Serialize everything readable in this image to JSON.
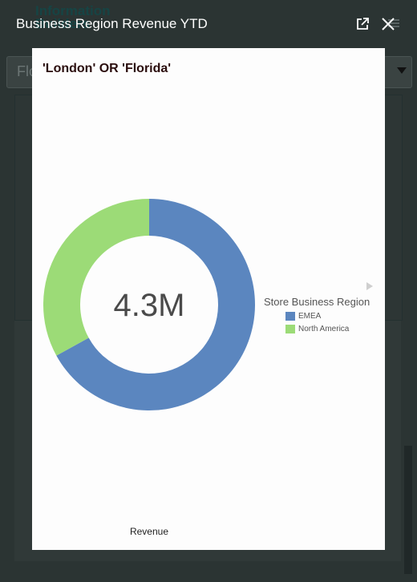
{
  "background": {
    "logo_text": "Information Builders",
    "filter_text": "Flo"
  },
  "modal": {
    "title": "Business Region Revenue YTD",
    "popout_icon": "popout-icon",
    "close_icon": "close-icon"
  },
  "chart_card": {
    "title": "'London' OR 'Florida'"
  },
  "chart_data": {
    "type": "pie",
    "title": "'London' OR 'Florida'",
    "center_label": "4.3M",
    "xlabel": "Revenue",
    "legend_title": "Store Business Region",
    "legend_placement": "right",
    "categories": [
      "EMEA",
      "North America"
    ],
    "values": [
      67,
      33
    ],
    "colors": [
      "#5b86bf",
      "#9cdb77"
    ]
  }
}
